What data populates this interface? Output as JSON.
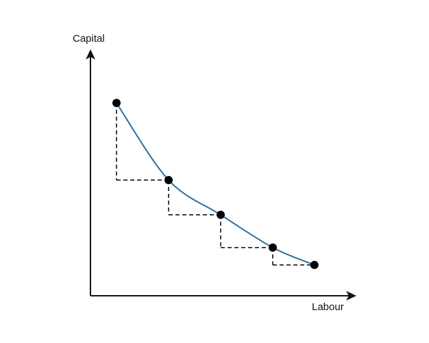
{
  "axes": {
    "y_label": "Capital",
    "x_label": "Labour"
  },
  "colors": {
    "curve": "#1f6fb2",
    "axis": "#111111",
    "points": "#000000",
    "steps": "#000000"
  },
  "icons": {
    "y_arrow": "arrowhead-up-icon",
    "x_arrow": "arrowhead-right-icon"
  },
  "chart_data": {
    "type": "line",
    "kind": "isoquant with marginal rate of technical substitution steps",
    "grid": false,
    "x_ticks": false,
    "y_ticks": false,
    "points": [
      {
        "x": 1.0,
        "y": 10.0
      },
      {
        "x": 2.0,
        "y": 6.0
      },
      {
        "x": 3.0,
        "y": 4.2
      },
      {
        "x": 4.0,
        "y": 2.5
      },
      {
        "x": 4.8,
        "y": 1.6
      }
    ],
    "xlim": [
      0.5,
      5.5
    ],
    "ylim": [
      0,
      12.5
    ],
    "steps": [
      {
        "from": 0,
        "to": 1
      },
      {
        "from": 1,
        "to": 2
      },
      {
        "from": 2,
        "to": 3
      },
      {
        "from": 3,
        "to": 4
      }
    ]
  }
}
